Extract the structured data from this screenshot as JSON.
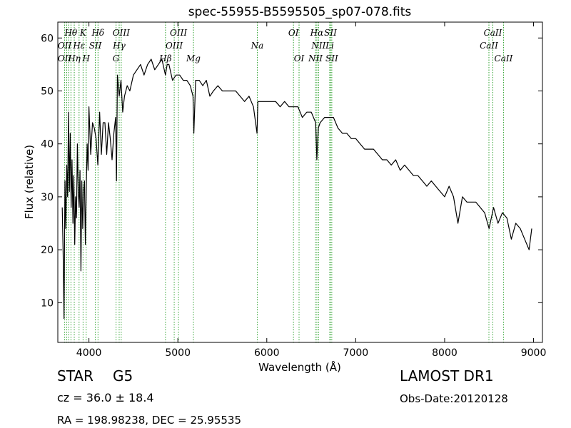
{
  "chart_data": {
    "type": "line",
    "title": "spec-55955-B5595505_sp07-078.fits",
    "xlabel": "Wavelength (Å)",
    "ylabel": "Flux (relative)",
    "xlim": [
      3650,
      9100
    ],
    "ylim": [
      2.5,
      63
    ],
    "xticks": [
      4000,
      5000,
      6000,
      7000,
      8000,
      9000
    ],
    "yticks": [
      10,
      20,
      30,
      40,
      50,
      60
    ],
    "grid": false,
    "series": [
      {
        "color": "#000000",
        "x": [
          3700,
          3710,
          3720,
          3730,
          3740,
          3750,
          3760,
          3770,
          3780,
          3790,
          3800,
          3810,
          3820,
          3830,
          3840,
          3850,
          3860,
          3870,
          3880,
          3890,
          3900,
          3910,
          3920,
          3930,
          3940,
          3950,
          3960,
          3970,
          3980,
          3990,
          4000,
          4020,
          4040,
          4060,
          4080,
          4100,
          4120,
          4140,
          4160,
          4180,
          4200,
          4220,
          4240,
          4260,
          4280,
          4300,
          4310,
          4320,
          4340,
          4360,
          4380,
          4400,
          4430,
          4460,
          4500,
          4540,
          4580,
          4620,
          4660,
          4700,
          4740,
          4780,
          4820,
          4860,
          4880,
          4900,
          4940,
          4980,
          5020,
          5060,
          5100,
          5140,
          5170,
          5180,
          5200,
          5240,
          5280,
          5320,
          5360,
          5400,
          5450,
          5500,
          5550,
          5600,
          5650,
          5700,
          5750,
          5800,
          5850,
          5890,
          5900,
          5950,
          6000,
          6050,
          6100,
          6150,
          6200,
          6250,
          6300,
          6350,
          6400,
          6450,
          6500,
          6550,
          6563,
          6580,
          6600,
          6650,
          6700,
          6750,
          6800,
          6850,
          6900,
          6950,
          7000,
          7050,
          7100,
          7150,
          7200,
          7250,
          7300,
          7350,
          7400,
          7450,
          7500,
          7550,
          7600,
          7650,
          7700,
          7750,
          7800,
          7850,
          7900,
          7950,
          8000,
          8050,
          8100,
          8150,
          8200,
          8250,
          8300,
          8350,
          8400,
          8450,
          8500,
          8550,
          8600,
          8650,
          8700,
          8750,
          8800,
          8850,
          8900,
          8950,
          8980
        ],
        "y": [
          28,
          19,
          7,
          33,
          24,
          36,
          30,
          46,
          31,
          42,
          28,
          37,
          25,
          34,
          21,
          30,
          26,
          40,
          31,
          28,
          35,
          16,
          33,
          24,
          31,
          33,
          21,
          32,
          40,
          35,
          47,
          38,
          44,
          43,
          41,
          36,
          46,
          38,
          44,
          44,
          38,
          44,
          41,
          37,
          42,
          45,
          33,
          53,
          49,
          52,
          46,
          49,
          51,
          50,
          53,
          54,
          55,
          53,
          55,
          56,
          54,
          55,
          56,
          53,
          55,
          55,
          52,
          53,
          53,
          52,
          52,
          51,
          49,
          42,
          52,
          52,
          51,
          52,
          49,
          50,
          51,
          50,
          50,
          50,
          50,
          49,
          48,
          49,
          47,
          42,
          48,
          48,
          48,
          48,
          48,
          47,
          48,
          47,
          47,
          47,
          45,
          46,
          46,
          44,
          37,
          43,
          44,
          45,
          45,
          45,
          43,
          42,
          42,
          41,
          41,
          40,
          39,
          39,
          39,
          38,
          37,
          37,
          36,
          37,
          35,
          36,
          35,
          34,
          34,
          33,
          32,
          33,
          32,
          31,
          30,
          32,
          30,
          25,
          30,
          29,
          29,
          29,
          28,
          27,
          24,
          28,
          25,
          27,
          26,
          22,
          25,
          24,
          22,
          20,
          24
        ]
      }
    ],
    "line_labels": [
      {
        "text": "Hθ",
        "x": 3797,
        "row": 0
      },
      {
        "text": "K",
        "x": 3934,
        "row": 0
      },
      {
        "text": "Hδ",
        "x": 4102,
        "row": 0
      },
      {
        "text": "OIII",
        "x": 4363,
        "row": 0
      },
      {
        "text": "OIII",
        "x": 5007,
        "row": 0
      },
      {
        "text": "OI",
        "x": 6300,
        "row": 0
      },
      {
        "text": "Hα",
        "x": 6563,
        "row": 0
      },
      {
        "text": "SII",
        "x": 6716,
        "row": 0
      },
      {
        "text": "CaII",
        "x": 8542,
        "row": 0
      },
      {
        "text": "OII",
        "x": 3727,
        "row": 1
      },
      {
        "text": "Hε",
        "x": 3889,
        "row": 1
      },
      {
        "text": "SII",
        "x": 4072,
        "row": 1
      },
      {
        "text": "Hγ",
        "x": 4340,
        "row": 1
      },
      {
        "text": "OIII",
        "x": 4959,
        "row": 1
      },
      {
        "text": "Na",
        "x": 5893,
        "row": 1
      },
      {
        "text": "NII",
        "x": 6583,
        "row": 1
      },
      {
        "text": "Li",
        "x": 6708,
        "row": 1
      },
      {
        "text": "CaII",
        "x": 8498,
        "row": 1
      },
      {
        "text": "OII",
        "x": 3727,
        "row": 2
      },
      {
        "text": "Hη",
        "x": 3835,
        "row": 2
      },
      {
        "text": "H",
        "x": 3969,
        "row": 2
      },
      {
        "text": "G",
        "x": 4305,
        "row": 2
      },
      {
        "text": "Hβ",
        "x": 4861,
        "row": 2
      },
      {
        "text": "Mg",
        "x": 5175,
        "row": 2
      },
      {
        "text": "OI",
        "x": 6363,
        "row": 2
      },
      {
        "text": "NII",
        "x": 6548,
        "row": 2
      },
      {
        "text": "SII",
        "x": 6731,
        "row": 2
      },
      {
        "text": "CaII",
        "x": 8662,
        "row": 2
      }
    ],
    "line_positions": [
      3727,
      3750,
      3771,
      3798,
      3835,
      3889,
      3934,
      3969,
      4072,
      4102,
      4305,
      4340,
      4363,
      4861,
      4959,
      5007,
      5175,
      5893,
      6300,
      6363,
      6548,
      6563,
      6583,
      6708,
      6716,
      6731,
      8498,
      8542,
      8662
    ]
  },
  "info": {
    "class_label": "STAR",
    "subclass": "G5",
    "cz": "cz = 36.0 ± 18.4",
    "coords": "RA = 198.98238, DEC = 25.95535",
    "survey": "LAMOST DR1",
    "obs_date": "Obs-Date:20120128"
  },
  "colors": {
    "spectrum": "#000000",
    "line_marker": "#2ca02c"
  }
}
